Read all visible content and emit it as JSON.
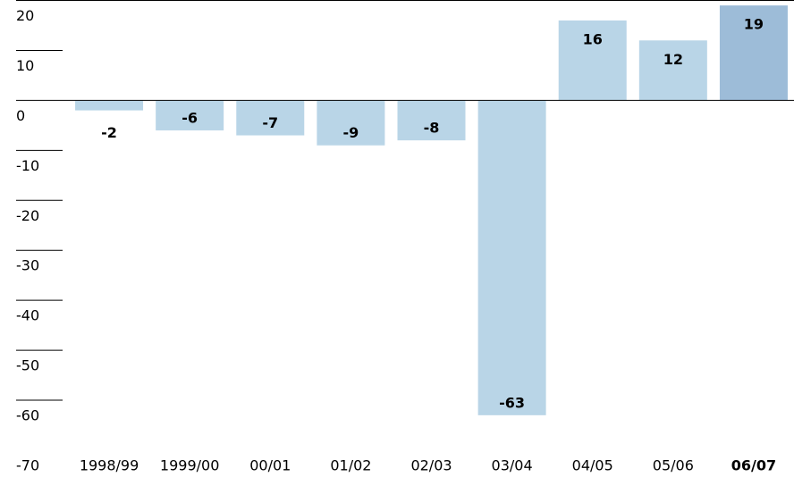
{
  "chart_data": {
    "type": "bar",
    "categories": [
      "1998/99",
      "1999/00",
      "00/01",
      "01/02",
      "02/03",
      "03/04",
      "04/05",
      "05/06",
      "06/07"
    ],
    "values": [
      -2,
      -6,
      -7,
      -9,
      -8,
      -63,
      16,
      12,
      19
    ],
    "colors": [
      "#b9d5e7",
      "#b9d5e7",
      "#b9d5e7",
      "#b9d5e7",
      "#b9d5e7",
      "#b9d5e7",
      "#b9d5e7",
      "#b9d5e7",
      "#9dbcd8"
    ],
    "bold_categories": [
      false,
      false,
      false,
      false,
      false,
      false,
      false,
      false,
      true
    ],
    "ylim": [
      -70,
      20
    ],
    "yticks": [
      -70,
      -60,
      -50,
      -40,
      -30,
      -20,
      -10,
      0,
      10,
      20
    ]
  }
}
